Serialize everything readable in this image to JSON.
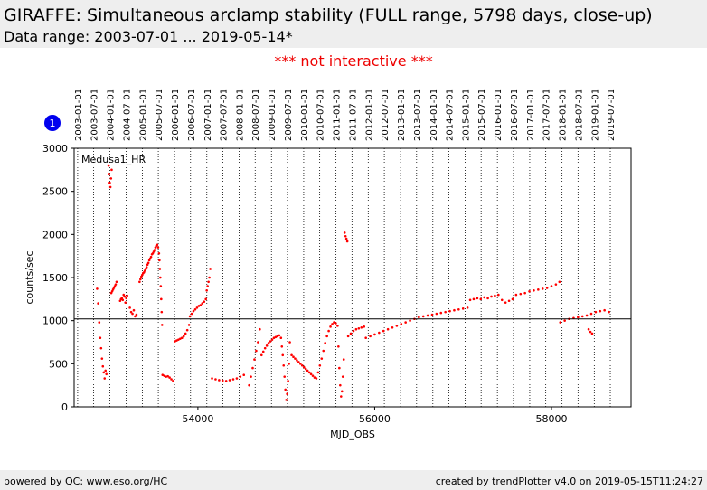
{
  "header": {
    "title": "GIRAFFE: Simultaneous arclamp stability (FULL range, 5798 days, close-up)",
    "subtitle": "Data range: 2003-07-01 ... 2019-05-14*"
  },
  "notice": "*** not interactive ***",
  "footer": {
    "left": "powered by QC: www.eso.org/HC",
    "right": "created by trendPlotter v4.0 on 2019-05-15T11:24:27"
  },
  "colors": {
    "data": "#ff0000",
    "reference": "#000000",
    "badge": "#0000ee",
    "notice": "#ee0000"
  },
  "chart_data": {
    "type": "scatter",
    "panel_label": "Medusa1_HR",
    "badge": "1",
    "xlabel": "MJD_OBS",
    "ylabel": "counts/sec",
    "xlim": [
      52600,
      58900
    ],
    "ylim": [
      0,
      3000
    ],
    "xticks": [
      54000,
      56000,
      58000
    ],
    "yticks": [
      0,
      500,
      1000,
      1500,
      2000,
      2500,
      3000
    ],
    "reference_line": 1020,
    "grid": "vertical dotted lines at date markers",
    "date_markers": [
      {
        "label": "2003-01-01",
        "mjd": 52640
      },
      {
        "label": "2003-07-01",
        "mjd": 52821
      },
      {
        "label": "2004-01-01",
        "mjd": 53005
      },
      {
        "label": "2004-07-01",
        "mjd": 53187
      },
      {
        "label": "2005-01-01",
        "mjd": 53371
      },
      {
        "label": "2005-07-01",
        "mjd": 53552
      },
      {
        "label": "2006-01-01",
        "mjd": 53736
      },
      {
        "label": "2006-07-01",
        "mjd": 53917
      },
      {
        "label": "2007-01-01",
        "mjd": 54101
      },
      {
        "label": "2007-07-01",
        "mjd": 54282
      },
      {
        "label": "2008-01-01",
        "mjd": 54466
      },
      {
        "label": "2008-07-01",
        "mjd": 54648
      },
      {
        "label": "2009-01-01",
        "mjd": 54832
      },
      {
        "label": "2009-07-01",
        "mjd": 55013
      },
      {
        "label": "2010-01-01",
        "mjd": 55197
      },
      {
        "label": "2010-07-01",
        "mjd": 55378
      },
      {
        "label": "2011-01-01",
        "mjd": 55562
      },
      {
        "label": "2011-07-01",
        "mjd": 55743
      },
      {
        "label": "2012-01-01",
        "mjd": 55927
      },
      {
        "label": "2012-07-01",
        "mjd": 56109
      },
      {
        "label": "2013-01-01",
        "mjd": 56293
      },
      {
        "label": "2013-07-01",
        "mjd": 56474
      },
      {
        "label": "2014-01-01",
        "mjd": 56658
      },
      {
        "label": "2014-07-01",
        "mjd": 56839
      },
      {
        "label": "2015-01-01",
        "mjd": 57023
      },
      {
        "label": "2015-07-01",
        "mjd": 57204
      },
      {
        "label": "2016-01-01",
        "mjd": 57388
      },
      {
        "label": "2016-07-01",
        "mjd": 57570
      },
      {
        "label": "2017-01-01",
        "mjd": 57754
      },
      {
        "label": "2017-07-01",
        "mjd": 57935
      },
      {
        "label": "2018-01-01",
        "mjd": 58119
      },
      {
        "label": "2018-07-01",
        "mjd": 58300
      },
      {
        "label": "2019-01-01",
        "mjd": 58484
      },
      {
        "label": "2019-07-01",
        "mjd": 58665
      }
    ],
    "series": [
      {
        "x": [
          52860,
          52872,
          52884,
          52895,
          52905,
          52915,
          52925,
          52935,
          52945,
          52955,
          52965
        ],
        "y": [
          1370,
          1200,
          980,
          800,
          680,
          560,
          470,
          400,
          330,
          420,
          380
        ]
      },
      {
        "x": [
          52990,
          52996,
          53003,
          53010,
          53017,
          53024
        ],
        "y": [
          2800,
          2700,
          2600,
          2550,
          2650,
          2750
        ]
      },
      {
        "x": [
          53020,
          53030,
          53040,
          53050,
          53060,
          53070,
          53080
        ],
        "y": [
          1320,
          1340,
          1360,
          1380,
          1400,
          1420,
          1450
        ]
      },
      {
        "x": [
          53120,
          53130,
          53140,
          53150,
          53160,
          53170,
          53180,
          53190,
          53200
        ],
        "y": [
          1230,
          1250,
          1260,
          1240,
          1300,
          1280,
          1210,
          1260,
          1290
        ]
      },
      {
        "x": [
          53230,
          53245,
          53260,
          53275,
          53290,
          53305
        ],
        "y": [
          1150,
          1100,
          1080,
          1120,
          1050,
          1070
        ]
      },
      {
        "x": [
          53340,
          53350,
          53360,
          53370,
          53380,
          53390,
          53400,
          53410,
          53420,
          53430,
          53440,
          53450,
          53460,
          53470,
          53480,
          53490,
          53500,
          53510,
          53520,
          53530,
          53540,
          53550
        ],
        "y": [
          1450,
          1480,
          1510,
          1530,
          1550,
          1560,
          1580,
          1600,
          1620,
          1650,
          1670,
          1700,
          1720,
          1740,
          1770,
          1780,
          1800,
          1820,
          1850,
          1870,
          1880,
          1850
        ]
      },
      {
        "x": [
          53560,
          53565,
          53570,
          53575,
          53580,
          53585,
          53590,
          53595
        ],
        "y": [
          1780,
          1700,
          1600,
          1500,
          1400,
          1250,
          1100,
          950
        ]
      },
      {
        "x": [
          53600,
          53620,
          53640,
          53660,
          53680,
          53700,
          53720
        ],
        "y": [
          370,
          360,
          350,
          355,
          340,
          320,
          300
        ]
      },
      {
        "x": [
          53740,
          53760,
          53780,
          53800,
          53820,
          53840,
          53860,
          53880,
          53900
        ],
        "y": [
          760,
          770,
          780,
          790,
          800,
          820,
          850,
          890,
          950
        ]
      },
      {
        "x": [
          53910,
          53930,
          53950,
          53970,
          53990,
          54010,
          54030,
          54050,
          54070,
          54090
        ],
        "y": [
          1050,
          1080,
          1110,
          1130,
          1150,
          1170,
          1180,
          1200,
          1220,
          1250
        ]
      },
      {
        "x": [
          54100,
          54110,
          54120,
          54130,
          54140
        ],
        "y": [
          1350,
          1400,
          1450,
          1500,
          1600
        ]
      },
      {
        "x": [
          54160,
          54200,
          54240,
          54280,
          54320,
          54360,
          54400,
          54440,
          54480,
          54520
        ],
        "y": [
          330,
          320,
          310,
          305,
          300,
          310,
          320,
          330,
          350,
          370
        ]
      },
      {
        "x": [
          54580,
          54600,
          54620,
          54640,
          54660,
          54680,
          54700
        ],
        "y": [
          250,
          350,
          450,
          550,
          650,
          750,
          900
        ]
      },
      {
        "x": [
          54720,
          54740,
          54760,
          54780,
          54800,
          54820,
          54840,
          54860,
          54880,
          54900,
          54920,
          54940
        ],
        "y": [
          600,
          640,
          680,
          710,
          740,
          760,
          780,
          800,
          810,
          820,
          830,
          800
        ]
      },
      {
        "x": [
          54950,
          54960,
          54970,
          54980,
          54990,
          55000,
          55010,
          55020,
          55030,
          55040
        ],
        "y": [
          700,
          600,
          480,
          350,
          200,
          80,
          150,
          300,
          500,
          750
        ]
      },
      {
        "x": [
          55060,
          55080,
          55100,
          55120,
          55140,
          55160,
          55180,
          55200,
          55220,
          55240,
          55260,
          55280,
          55300,
          55320,
          55340
        ],
        "y": [
          600,
          580,
          560,
          540,
          520,
          500,
          480,
          460,
          440,
          420,
          400,
          380,
          360,
          340,
          330
        ]
      },
      {
        "x": [
          55360,
          55380,
          55400,
          55420,
          55440,
          55460,
          55480,
          55500,
          55520,
          55540,
          55560,
          55580
        ],
        "y": [
          400,
          480,
          560,
          650,
          740,
          820,
          880,
          930,
          960,
          980,
          970,
          940
        ]
      },
      {
        "x": [
          55590,
          55600,
          55610,
          55620,
          55630,
          55640,
          55650
        ],
        "y": [
          700,
          450,
          250,
          120,
          180,
          350,
          550
        ]
      },
      {
        "x": [
          55660,
          55670,
          55680,
          55690
        ],
        "y": [
          2020,
          1980,
          1950,
          1920
        ]
      },
      {
        "x": [
          55700,
          55730,
          55760,
          55790,
          55820,
          55850,
          55880
        ],
        "y": [
          820,
          850,
          880,
          900,
          910,
          920,
          930
        ]
      },
      {
        "x": [
          55900,
          55950,
          56000,
          56050,
          56100,
          56150,
          56200,
          56250,
          56300,
          56350,
          56400,
          56450,
          56500,
          56550,
          56600,
          56650,
          56700,
          56750,
          56800,
          56850,
          56900,
          56950,
          57000,
          57050
        ],
        "y": [
          800,
          820,
          840,
          860,
          880,
          900,
          920,
          940,
          960,
          980,
          1000,
          1020,
          1040,
          1050,
          1060,
          1070,
          1080,
          1090,
          1100,
          1110,
          1120,
          1130,
          1140,
          1150
        ]
      },
      {
        "x": [
          57080,
          57120,
          57160,
          57200,
          57240,
          57280,
          57320,
          57360,
          57400,
          57440,
          57480,
          57520,
          57560
        ],
        "y": [
          1240,
          1250,
          1260,
          1250,
          1270,
          1260,
          1280,
          1290,
          1300,
          1240,
          1210,
          1230,
          1250
        ]
      },
      {
        "x": [
          57600,
          57650,
          57700,
          57750,
          57800,
          57850,
          57900,
          57950,
          58000,
          58050,
          58090
        ],
        "y": [
          1300,
          1310,
          1320,
          1340,
          1350,
          1360,
          1370,
          1380,
          1400,
          1420,
          1450
        ]
      },
      {
        "x": [
          58100,
          58150,
          58200,
          58250,
          58300,
          58350,
          58400,
          58450,
          58500,
          58550,
          58600,
          58650
        ],
        "y": [
          980,
          1000,
          1020,
          1030,
          1040,
          1050,
          1060,
          1080,
          1100,
          1110,
          1120,
          1100
        ]
      },
      {
        "x": [
          58420,
          58440,
          58460
        ],
        "y": [
          900,
          870,
          850
        ]
      }
    ]
  }
}
